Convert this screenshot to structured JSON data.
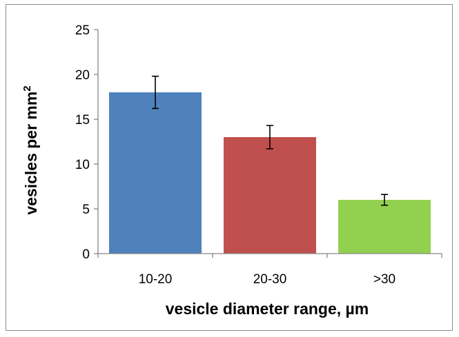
{
  "chart_data": {
    "type": "bar",
    "categories": [
      "10-20",
      "20-30",
      ">30"
    ],
    "values": [
      18,
      13,
      6
    ],
    "errors": [
      1.8,
      1.3,
      0.6
    ],
    "colors": [
      "#4f81bd",
      "#c0504d",
      "#92d050"
    ],
    "xlabel": "vesicle diameter range, µm",
    "ylabel_main": "vesicles per mm",
    "ylabel_sup": "2",
    "ylim": [
      0,
      25
    ],
    "yticks": [
      "0",
      "5",
      "10",
      "15",
      "20",
      "25"
    ],
    "yticks_values": [
      0,
      5,
      10,
      15,
      20,
      25
    ],
    "grid": false,
    "legend": "none"
  }
}
